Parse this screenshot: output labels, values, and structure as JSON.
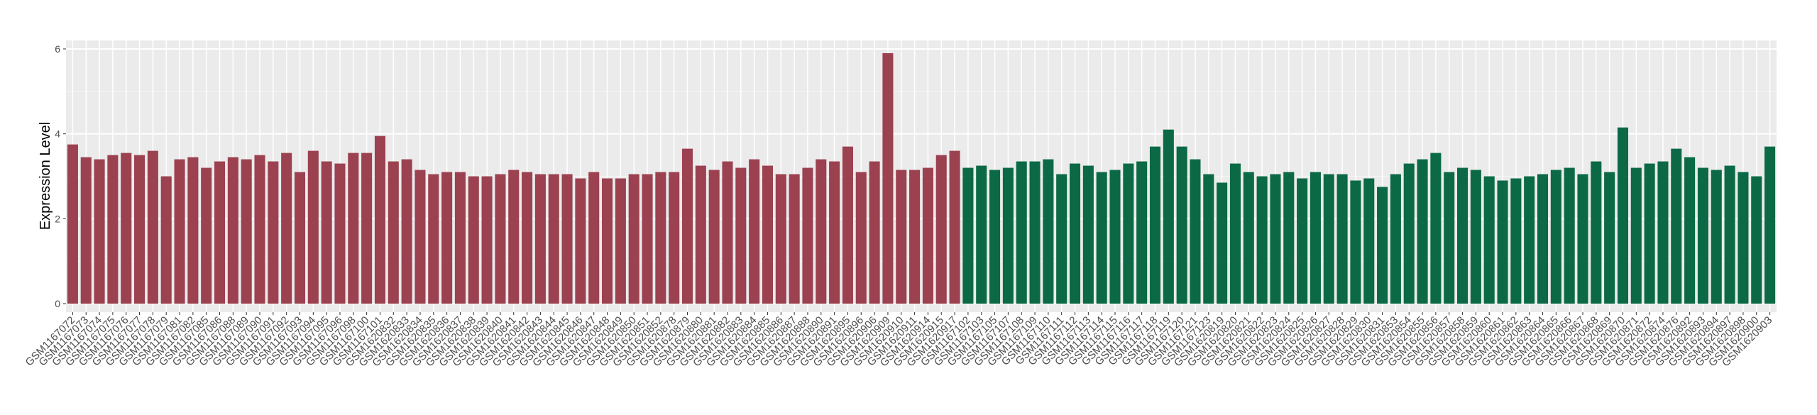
{
  "chart_data": {
    "type": "bar",
    "y_label": "Expression Level",
    "ylim": [
      -0.2,
      6.2
    ],
    "yticks": [
      0,
      2,
      4,
      6
    ],
    "grid": true,
    "series": [
      {
        "color": "#9b4150",
        "categories": [
          "GSM1167072",
          "GSM1167073",
          "GSM1167074",
          "GSM1167075",
          "GSM1167076",
          "GSM1167077",
          "GSM1167078",
          "GSM1167079",
          "GSM1167081",
          "GSM1167082",
          "GSM1167085",
          "GSM1167086",
          "GSM1167088",
          "GSM1167089",
          "GSM1167090",
          "GSM1167091",
          "GSM1167092",
          "GSM1167093",
          "GSM1167094",
          "GSM1167095",
          "GSM1167096",
          "GSM1167098",
          "GSM1167100",
          "GSM1167101",
          "GSM1620832",
          "GSM1620833",
          "GSM1620834",
          "GSM1620835",
          "GSM1620836",
          "GSM1620837",
          "GSM1620838",
          "GSM1620839",
          "GSM1620840",
          "GSM1620841",
          "GSM1620842",
          "GSM1620843",
          "GSM1620844",
          "GSM1620845",
          "GSM1620846",
          "GSM1620847",
          "GSM1620848",
          "GSM1620849",
          "GSM1620850",
          "GSM1620851",
          "GSM1620852",
          "GSM1620878",
          "GSM1620879",
          "GSM1620880",
          "GSM1620881",
          "GSM1620882",
          "GSM1620883",
          "GSM1620884",
          "GSM1620885",
          "GSM1620886",
          "GSM1620887",
          "GSM1620888",
          "GSM1620890",
          "GSM1620891",
          "GSM1620895",
          "GSM1620896",
          "GSM1620906",
          "GSM1620909",
          "GSM1620910",
          "GSM1620911",
          "GSM1620914",
          "GSM1620915",
          "GSM1620917"
        ],
        "values": [
          3.75,
          3.45,
          3.4,
          3.5,
          3.55,
          3.5,
          3.6,
          3.0,
          3.4,
          3.45,
          3.2,
          3.35,
          3.45,
          3.4,
          3.5,
          3.35,
          3.55,
          3.1,
          3.6,
          3.35,
          3.3,
          3.55,
          3.55,
          3.95,
          3.35,
          3.4,
          3.15,
          3.05,
          3.1,
          3.1,
          3.0,
          3.0,
          3.05,
          3.15,
          3.1,
          3.05,
          3.05,
          3.05,
          2.95,
          3.1,
          2.95,
          2.95,
          3.05,
          3.05,
          3.1,
          3.1,
          3.65,
          3.25,
          3.15,
          3.35,
          3.2,
          3.4,
          3.25,
          3.05,
          3.05,
          3.2,
          3.4,
          3.35,
          3.7,
          3.1,
          3.35,
          5.9,
          3.15,
          3.15,
          3.2,
          3.5,
          3.6
        ]
      },
      {
        "color": "#0b6a45",
        "categories": [
          "GSM1167102",
          "GSM1167103",
          "GSM1167105",
          "GSM1167107",
          "GSM1167108",
          "GSM1167109",
          "GSM1167110",
          "GSM1167111",
          "GSM1167112",
          "GSM1167113",
          "GSM1167114",
          "GSM1167115",
          "GSM1167116",
          "GSM1167117",
          "GSM1167118",
          "GSM1167119",
          "GSM1167120",
          "GSM1167121",
          "GSM1167123",
          "GSM1620819",
          "GSM1620820",
          "GSM1620821",
          "GSM1620822",
          "GSM1620823",
          "GSM1620824",
          "GSM1620825",
          "GSM1620826",
          "GSM1620827",
          "GSM1620828",
          "GSM1620829",
          "GSM1620830",
          "GSM1620831",
          "GSM1620853",
          "GSM1620854",
          "GSM1620855",
          "GSM1620856",
          "GSM1620857",
          "GSM1620858",
          "GSM1620859",
          "GSM1620860",
          "GSM1620861",
          "GSM1620862",
          "GSM1620863",
          "GSM1620864",
          "GSM1620865",
          "GSM1620866",
          "GSM1620867",
          "GSM1620868",
          "GSM1620869",
          "GSM1620870",
          "GSM1620871",
          "GSM1620872",
          "GSM1620874",
          "GSM1620876",
          "GSM1620892",
          "GSM1620893",
          "GSM1620894",
          "GSM1620897",
          "GSM1620898",
          "GSM1620900",
          "GSM1620903"
        ],
        "values": [
          3.2,
          3.25,
          3.15,
          3.2,
          3.35,
          3.35,
          3.4,
          3.05,
          3.3,
          3.25,
          3.1,
          3.15,
          3.3,
          3.35,
          3.7,
          4.1,
          3.7,
          3.4,
          3.05,
          2.85,
          3.3,
          3.1,
          3.0,
          3.05,
          3.1,
          2.95,
          3.1,
          3.05,
          3.05,
          2.9,
          2.95,
          2.75,
          3.05,
          3.3,
          3.4,
          3.55,
          3.1,
          3.2,
          3.15,
          3.0,
          2.9,
          2.95,
          3.0,
          3.05,
          3.15,
          3.2,
          3.05,
          3.35,
          3.1,
          4.15,
          3.2,
          3.3,
          3.35,
          3.65,
          3.45,
          3.2,
          3.15,
          3.25,
          3.1,
          3.0,
          3.7
        ]
      }
    ]
  }
}
